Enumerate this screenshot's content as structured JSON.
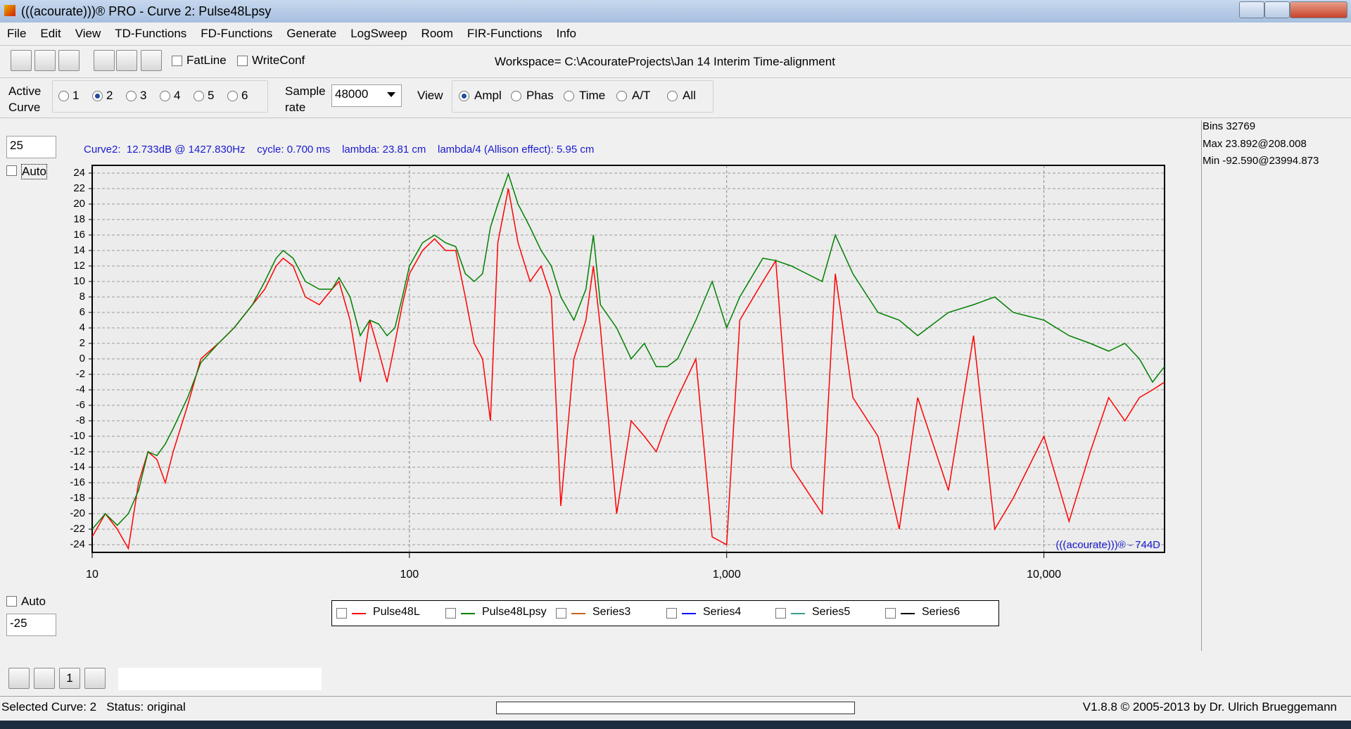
{
  "window": {
    "title": "(((acourate)))® PRO - Curve 2: Pulse48Lpsy"
  },
  "menu": [
    "File",
    "Edit",
    "View",
    "TD-Functions",
    "FD-Functions",
    "Generate",
    "LogSweep",
    "Room",
    "FIR-Functions",
    "Info"
  ],
  "toolbar": {
    "fatline": "FatLine",
    "writeconf": "WriteConf",
    "workspace": "Workspace= C:\\AcourateProjects\\Jan 14 Interim Time-alignment"
  },
  "controls": {
    "active_curve_label": "Active Curve",
    "curves": [
      "1",
      "2",
      "3",
      "4",
      "5",
      "6"
    ],
    "sample_rate_label": "Sample rate",
    "sample_rate": "48000",
    "view_label": "View",
    "views": [
      "Ampl",
      "Phas",
      "Time",
      "A/T",
      "All"
    ]
  },
  "left_panel": {
    "ymax": "25",
    "auto_top": "Auto",
    "auto_bottom": "Auto",
    "ymin": "-25"
  },
  "right_panel": {
    "bins": "Bins 32769",
    "max": "Max 23.892@208.008",
    "min": "Min -92.590@23994.873"
  },
  "bottom_toolbar": {
    "reset": "1"
  },
  "status": {
    "left": "Selected Curve: 2   Status: original",
    "right": "V1.8.8 © 2005-2013 by Dr. Ulrich Brueggemann"
  },
  "chart_data": {
    "type": "line",
    "annotation": "Curve2:  12.733dB @ 1427.830Hz    cycle: 0.700 ms    lambda: 23.81 cm    lambda/4 (Allison effect): 5.95 cm",
    "watermark": "(((acourate)))® - 744D",
    "xscale": "log",
    "xlim": [
      10,
      24000
    ],
    "xticks": [
      10,
      100,
      {
        "value": 1000,
        "label": "1,000"
      },
      {
        "value": 10000,
        "label": "10,000"
      }
    ],
    "ylim": [
      -25,
      25
    ],
    "yticks": [
      -24,
      -22,
      -20,
      -18,
      -16,
      -14,
      -12,
      -10,
      -8,
      -6,
      -4,
      -2,
      0,
      2,
      4,
      6,
      8,
      10,
      12,
      14,
      16,
      18,
      20,
      22,
      24
    ],
    "grid": true,
    "x": [
      10,
      11,
      12,
      13,
      14,
      15,
      16,
      17,
      18,
      20,
      22,
      25,
      28,
      32,
      35,
      38,
      40,
      43,
      47,
      52,
      57,
      60,
      65,
      70,
      75,
      80,
      85,
      90,
      95,
      100,
      110,
      120,
      130,
      140,
      150,
      160,
      170,
      180,
      190,
      205,
      220,
      240,
      260,
      280,
      300,
      330,
      360,
      380,
      400,
      450,
      500,
      550,
      600,
      650,
      700,
      800,
      900,
      1000,
      1100,
      1300,
      1428,
      1600,
      2000,
      2200,
      2500,
      3000,
      3500,
      4000,
      5000,
      6000,
      7000,
      8000,
      10000,
      12000,
      14000,
      16000,
      18000,
      20000,
      22000,
      24000
    ],
    "series": [
      {
        "name": "Pulse48L",
        "color": "#ff0000",
        "values": [
          -23,
          -20,
          -22,
          -24.5,
          -16,
          -12,
          -13,
          -16,
          -12,
          -6,
          0,
          2,
          4,
          7,
          9,
          12,
          13,
          12,
          8,
          7,
          9,
          10,
          5,
          -3,
          5,
          1,
          -3,
          2,
          7,
          11,
          14,
          15.5,
          14,
          14,
          8,
          2,
          0,
          -8,
          15,
          22,
          15,
          10,
          12,
          8,
          -19,
          0,
          5,
          12,
          4,
          -20,
          -8,
          -10,
          -12,
          -8,
          -5,
          0,
          -23,
          -24,
          5,
          10,
          12.7,
          -14,
          -20,
          11,
          -5,
          -10,
          -22,
          -5,
          -17,
          3,
          -22,
          -18,
          -10,
          -21,
          -12,
          -5,
          -8,
          -5,
          -4,
          -3
        ]
      },
      {
        "name": "Pulse48Lpsy",
        "color": "#008000",
        "values": [
          -22,
          -20,
          -21.5,
          -20,
          -17,
          -12,
          -12.5,
          -11,
          -9,
          -5,
          -0.5,
          2,
          4,
          7,
          10,
          13,
          14,
          13,
          10,
          9,
          9,
          10.5,
          8,
          3,
          5,
          4.5,
          3,
          4,
          8,
          12,
          15,
          16,
          15,
          14.5,
          11,
          10,
          11,
          17,
          20,
          23.9,
          20,
          17,
          14,
          12,
          8,
          5,
          9,
          16,
          7,
          4,
          0,
          2,
          -1,
          -1,
          0,
          5,
          10,
          4,
          8,
          13,
          12.7,
          12,
          10,
          16,
          11,
          6,
          5,
          3,
          6,
          7,
          8,
          6,
          5,
          3,
          2,
          1,
          2,
          0,
          -3,
          -1
        ]
      },
      {
        "name": "Series3",
        "color": "#c8641e",
        "values": [
          null,
          null,
          null,
          null,
          null,
          null,
          null,
          null,
          null,
          null,
          null,
          null,
          null,
          null,
          null,
          null,
          null,
          null,
          null,
          null,
          null,
          null,
          null,
          null,
          null,
          null,
          null,
          null,
          null,
          null,
          null,
          null,
          null,
          null,
          null,
          null,
          null,
          null,
          null,
          null,
          null,
          null,
          null,
          null,
          null,
          null,
          null,
          null,
          null,
          null,
          null,
          null,
          null,
          null,
          null,
          null,
          null,
          null,
          null,
          null,
          null,
          null,
          null,
          null,
          null,
          null,
          null,
          null,
          null,
          null,
          null,
          null,
          null,
          null,
          null,
          null,
          null,
          null,
          null,
          null
        ]
      },
      {
        "name": "Series4",
        "color": "#0000ff",
        "values": [
          null,
          null,
          null,
          null,
          null,
          null,
          null,
          null,
          null,
          null,
          null,
          null,
          null,
          null,
          null,
          null,
          null,
          null,
          null,
          null,
          null,
          null,
          null,
          null,
          null,
          null,
          null,
          null,
          null,
          null,
          null,
          null,
          null,
          null,
          null,
          null,
          null,
          null,
          null,
          null,
          null,
          null,
          null,
          null,
          null,
          null,
          null,
          null,
          null,
          null,
          null,
          null,
          null,
          null,
          null,
          null,
          null,
          null,
          null,
          null,
          null,
          null,
          null,
          null,
          null,
          null,
          null,
          null,
          null,
          null,
          null,
          null,
          null,
          null,
          null,
          null,
          null,
          null,
          null,
          null
        ]
      },
      {
        "name": "Series5",
        "color": "#3c9c8c",
        "values": [
          null,
          null,
          null,
          null,
          null,
          null,
          null,
          null,
          null,
          null,
          null,
          null,
          null,
          null,
          null,
          null,
          null,
          null,
          null,
          null,
          null,
          null,
          null,
          null,
          null,
          null,
          null,
          null,
          null,
          null,
          null,
          null,
          null,
          null,
          null,
          null,
          null,
          null,
          null,
          null,
          null,
          null,
          null,
          null,
          null,
          null,
          null,
          null,
          null,
          null,
          null,
          null,
          null,
          null,
          null,
          null,
          null,
          null,
          null,
          null,
          null,
          null,
          null,
          null,
          null,
          null,
          null,
          null,
          null,
          null,
          null,
          null,
          null,
          null,
          null,
          null,
          null,
          null,
          null,
          null
        ]
      },
      {
        "name": "Series6",
        "color": "#000000",
        "values": [
          null,
          null,
          null,
          null,
          null,
          null,
          null,
          null,
          null,
          null,
          null,
          null,
          null,
          null,
          null,
          null,
          null,
          null,
          null,
          null,
          null,
          null,
          null,
          null,
          null,
          null,
          null,
          null,
          null,
          null,
          null,
          null,
          null,
          null,
          null,
          null,
          null,
          null,
          null,
          null,
          null,
          null,
          null,
          null,
          null,
          null,
          null,
          null,
          null,
          null,
          null,
          null,
          null,
          null,
          null,
          null,
          null,
          null,
          null,
          null,
          null,
          null,
          null,
          null,
          null,
          null,
          null,
          null,
          null,
          null,
          null,
          null,
          null,
          null,
          null,
          null,
          null,
          null,
          null,
          null
        ]
      }
    ]
  }
}
